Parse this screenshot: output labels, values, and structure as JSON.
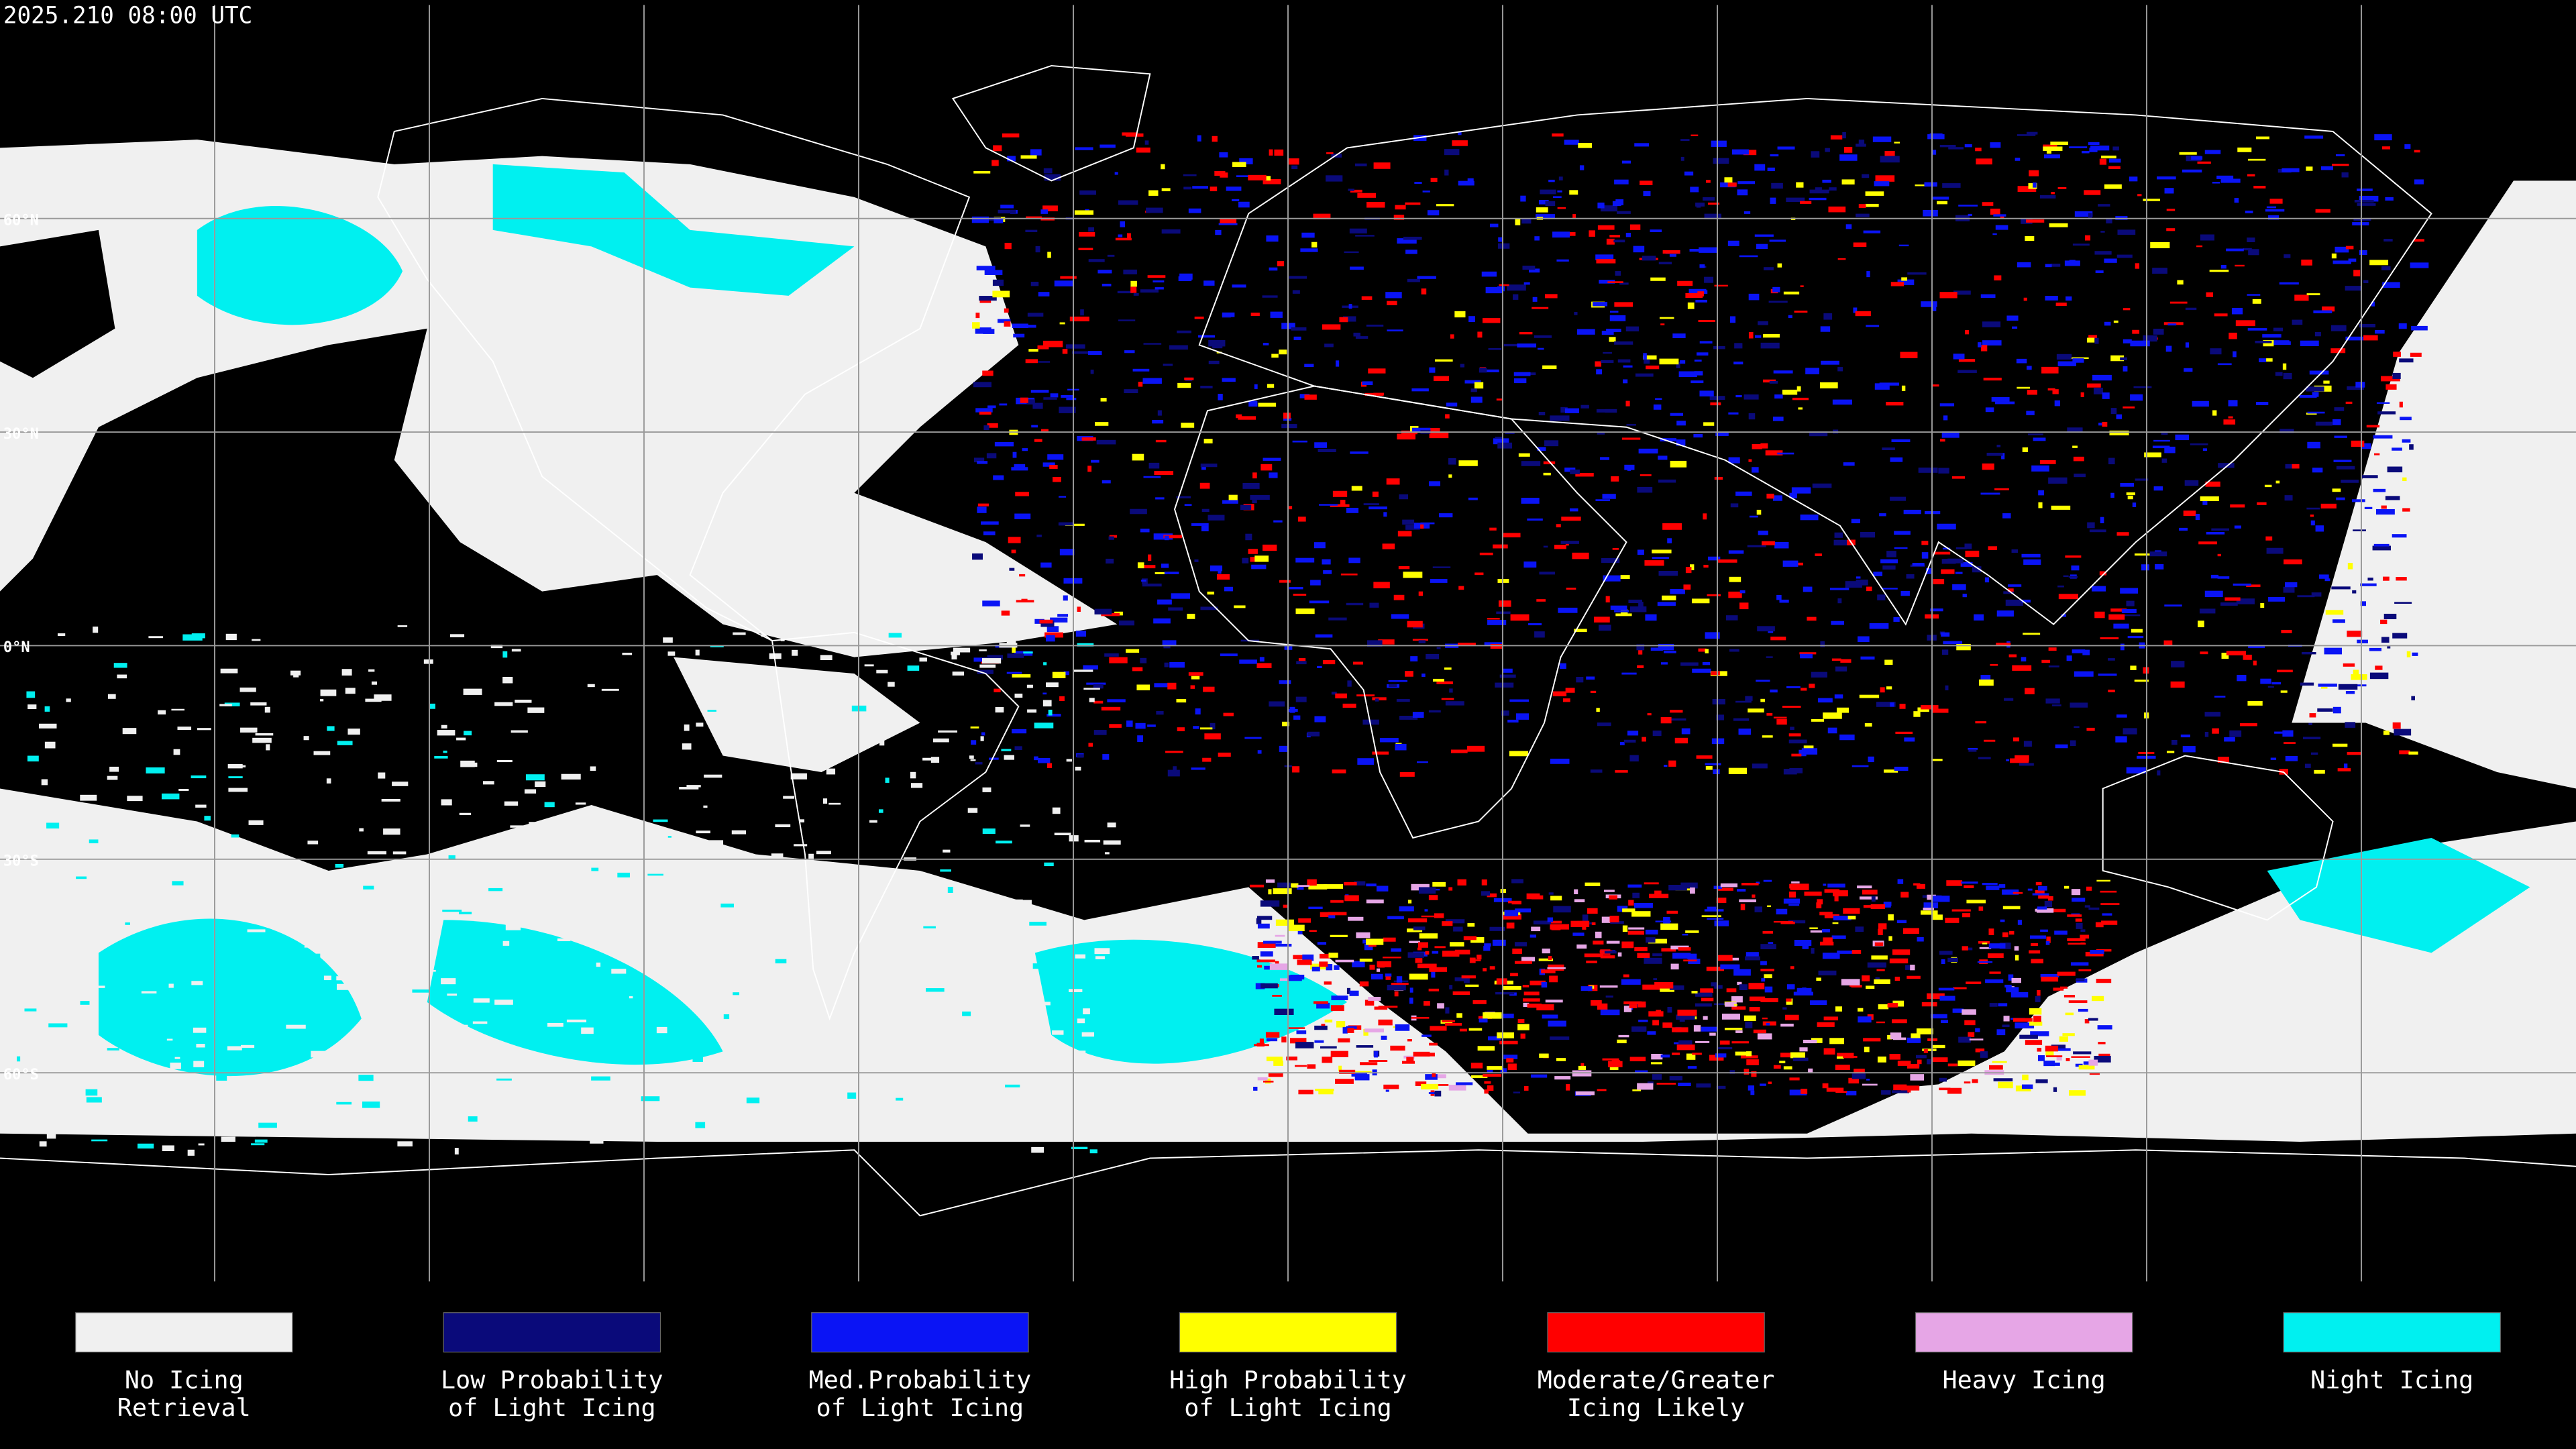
{
  "timestamp": "2025.210 08:00 UTC",
  "latitude_labels": [
    "60°N",
    "30°N",
    "0°N",
    "30°S",
    "60°S"
  ],
  "legend": [
    {
      "label_lines": [
        "No Icing",
        "Retrieval"
      ],
      "color": "#f0f0f0"
    },
    {
      "label_lines": [
        "Low Probability",
        "of Light Icing"
      ],
      "color": "#0a0a7a"
    },
    {
      "label_lines": [
        "Med.Probability",
        "of Light Icing"
      ],
      "color": "#0a14f5"
    },
    {
      "label_lines": [
        "High Probability",
        "of Light Icing"
      ],
      "color": "#ffff00"
    },
    {
      "label_lines": [
        "Moderate/Greater",
        "Icing Likely"
      ],
      "color": "#ff0000"
    },
    {
      "label_lines": [
        "Heavy Icing"
      ],
      "color": "#e6a6e6"
    },
    {
      "label_lines": [
        "Night Icing"
      ],
      "color": "#00f0f0"
    }
  ]
}
